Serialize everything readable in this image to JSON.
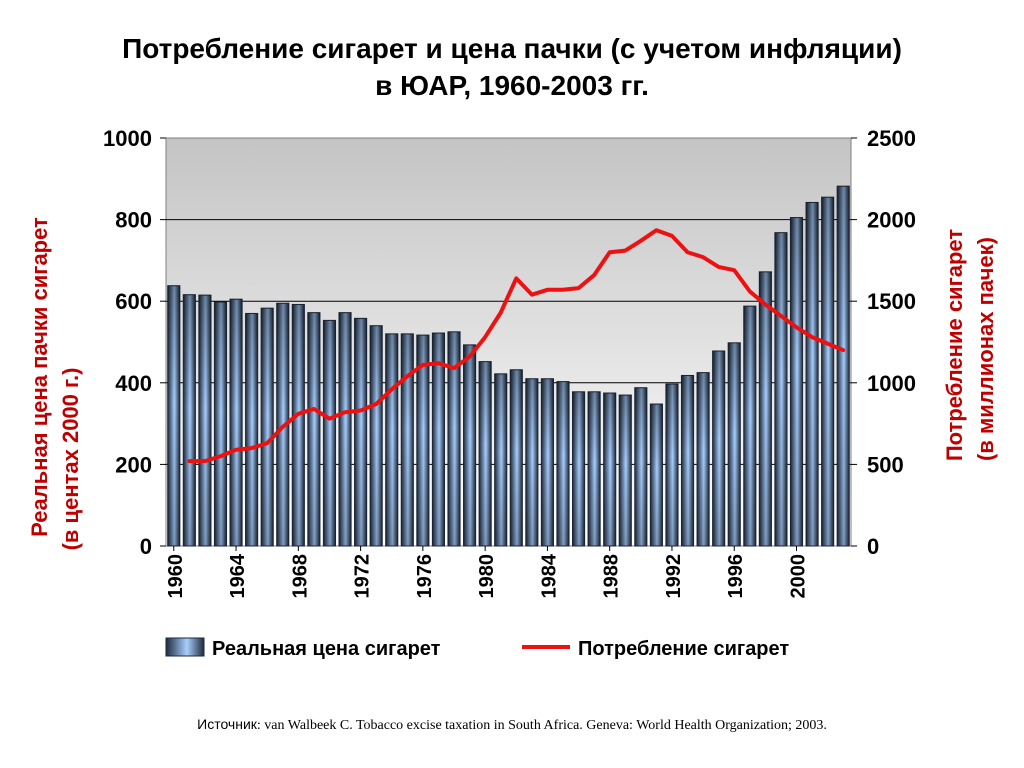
{
  "title": {
    "line1": "Потребление сигарет и цена пачки (с учетом инфляции)",
    "line2": "в ЮАР, 1960-2003 гг."
  },
  "source": {
    "label": "Источник",
    "text": ": van Walbeek C. Tobacco excise taxation in South Africa. Geneva: World Health Organization; 2003."
  },
  "colors": {
    "bar_dark": "#1e2a3c",
    "bar_light": "#a9cfff",
    "line": "#ee1111",
    "plot_top": "#c4c4c4",
    "plot_bottom": "#ffffff",
    "left_axis_text": "#000000",
    "right_axis_text": "#000000"
  },
  "chart_data": {
    "type": "bar",
    "x": [
      1960,
      1961,
      1962,
      1963,
      1964,
      1965,
      1966,
      1967,
      1968,
      1969,
      1970,
      1971,
      1972,
      1973,
      1974,
      1975,
      1976,
      1977,
      1978,
      1979,
      1980,
      1981,
      1982,
      1983,
      1984,
      1985,
      1986,
      1987,
      1988,
      1989,
      1990,
      1991,
      1992,
      1993,
      1994,
      1995,
      1996,
      1997,
      1998,
      1999,
      2000,
      2001,
      2002,
      2003
    ],
    "x_tick_labels": [
      "1960",
      "1964",
      "1968",
      "1972",
      "1976",
      "1980",
      "1984",
      "1988",
      "1992",
      "1996",
      "2000"
    ],
    "series": [
      {
        "name": "Реальная цена сигарет",
        "type": "bar",
        "axis": "left",
        "values": [
          638,
          616,
          615,
          598,
          605,
          570,
          583,
          595,
          592,
          572,
          553,
          572,
          558,
          540,
          520,
          520,
          517,
          522,
          525,
          493,
          452,
          422,
          432,
          410,
          410,
          403,
          378,
          378,
          375,
          370,
          388,
          348,
          397,
          418,
          425,
          478,
          498,
          588,
          672,
          768,
          805,
          842,
          855,
          882
        ]
      },
      {
        "name": "Потребление сигарет",
        "type": "line",
        "axis": "right",
        "x": [
          1961,
          1962,
          1963,
          1964,
          1965,
          1966,
          1967,
          1968,
          1969,
          1970,
          1971,
          1972,
          1973,
          1974,
          1975,
          1976,
          1977,
          1978,
          1979,
          1980,
          1981,
          1982,
          1983,
          1984,
          1985,
          1986,
          1987,
          1988,
          1989,
          1990,
          1991,
          1992,
          1993,
          1994,
          1995,
          1996,
          1997,
          1998,
          1999,
          2000,
          2001,
          2002,
          2003
        ],
        "values": [
          520,
          520,
          550,
          590,
          600,
          630,
          730,
          810,
          840,
          780,
          820,
          830,
          870,
          960,
          1040,
          1110,
          1120,
          1090,
          1160,
          1280,
          1430,
          1640,
          1540,
          1570,
          1570,
          1580,
          1660,
          1800,
          1810,
          1870,
          1935,
          1900,
          1800,
          1770,
          1710,
          1690,
          1560,
          1480,
          1410,
          1340,
          1280,
          1240,
          1200
        ]
      }
    ],
    "y_left": {
      "label_line1": "Реальная цена пачки сигарет",
      "label_line2": "(в центах 2000 г.)",
      "ylim": [
        0,
        1000
      ],
      "ticks": [
        "0",
        "200",
        "400",
        "600",
        "800",
        "1000"
      ]
    },
    "y_right": {
      "label_line1": "Потребление сигарет",
      "label_line2": "(в миллионах пачек)",
      "ylim": [
        0,
        2500
      ],
      "ticks": [
        "0",
        "500",
        "1000",
        "1500",
        "2000",
        "2500"
      ]
    },
    "grid": "horizontal",
    "legend": {
      "position": "bottom",
      "bar_label": "Реальная цена сигарет",
      "line_label": "Потребление сигарет"
    }
  }
}
